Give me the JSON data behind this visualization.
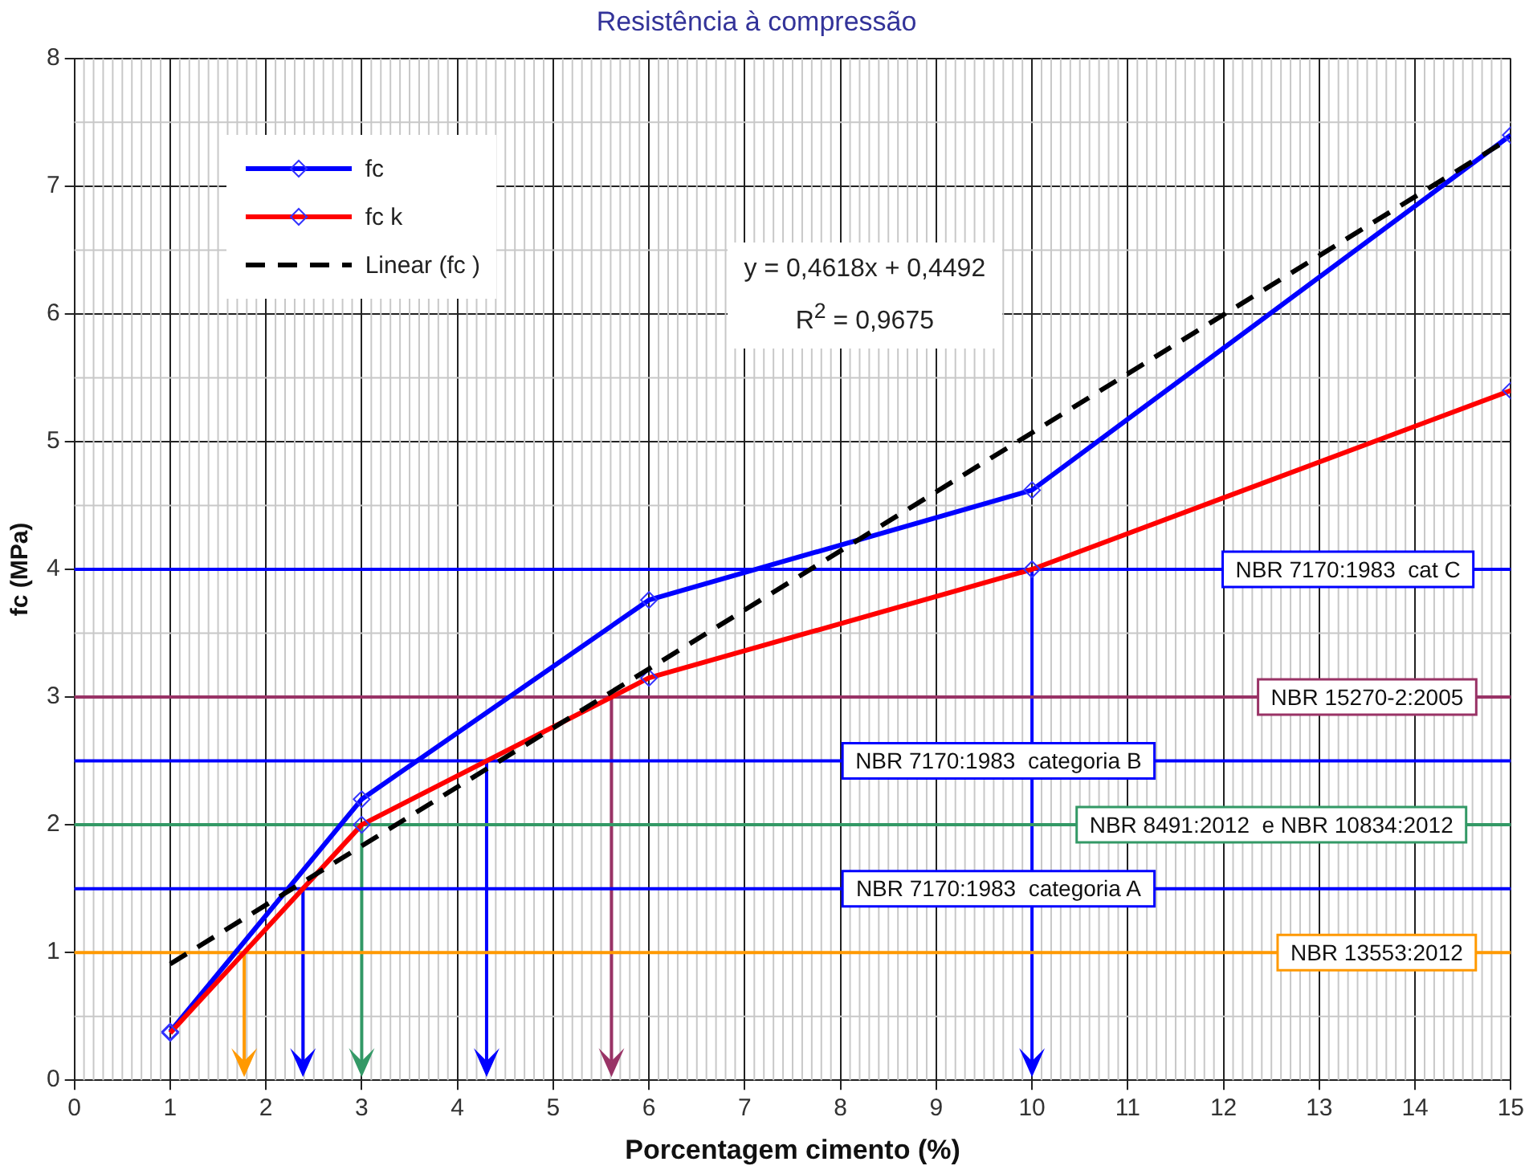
{
  "chart_data": {
    "type": "line",
    "title": "Resistência à compressão",
    "xlabel": "Porcentagem cimento (%)",
    "ylabel": "fc (MPa)",
    "xlim": [
      0,
      15
    ],
    "xticks": [
      0,
      1,
      2,
      3,
      4,
      5,
      6,
      7,
      8,
      9,
      10,
      11,
      12,
      13,
      14,
      15
    ],
    "ylim": [
      0,
      8
    ],
    "yticks": [
      0,
      1,
      2,
      3,
      4,
      5,
      6,
      7,
      8
    ],
    "grid": true,
    "legend": "top left",
    "marker": "diamond",
    "series": [
      {
        "name": "fc",
        "color": "#0000ff",
        "x": [
          1,
          3,
          6,
          10,
          15
        ],
        "values": [
          0.38,
          2.2,
          3.76,
          4.62,
          7.4
        ]
      },
      {
        "name": "fc k",
        "color": "#ff0000",
        "x": [
          1,
          3,
          6,
          10,
          15
        ],
        "values": [
          0.37,
          2.0,
          3.15,
          4.0,
          5.4
        ]
      },
      {
        "name": "Linear (fc )",
        "color": "#000000",
        "type": "line",
        "x": [
          1,
          15
        ],
        "values": [
          0.91,
          7.38
        ],
        "line_style": "dashed",
        "marker": "none"
      }
    ],
    "ref_lines": [
      {
        "axis": "y",
        "value": 4,
        "color": "#0000ff"
      },
      {
        "axis": "y",
        "value": 3,
        "color": "#993366"
      },
      {
        "axis": "y",
        "value": 2.5,
        "color": "#0000ff"
      },
      {
        "axis": "y",
        "value": 2,
        "color": "#339966"
      },
      {
        "axis": "y",
        "value": 1.5,
        "color": "#0000ff"
      },
      {
        "axis": "y",
        "value": 1,
        "color": "#ff9900"
      }
    ],
    "annotations": [
      "y = 0,4618x + 0,4492",
      "R$^{2}$ = 0,9675",
      {
        "text": "NBR 7170:1983  cat C",
        "x": 13.3,
        "y": 4
      },
      {
        "text": "NBR 15270-2:2005",
        "x": 13.5,
        "y": 3
      },
      {
        "text": "NBR 7170:1983  categoria B",
        "x": 9.65,
        "y": 2.5
      },
      {
        "text": "NBR 8491:2012  e NBR 10834:2012",
        "x": 12.5,
        "y": 2
      },
      {
        "text": "NBR 7170:1983  categoria A",
        "x": 9.65,
        "y": 1.5
      },
      {
        "text": "NBR 13553:2012",
        "x": 13.6,
        "y": 1
      }
    ]
  }
}
